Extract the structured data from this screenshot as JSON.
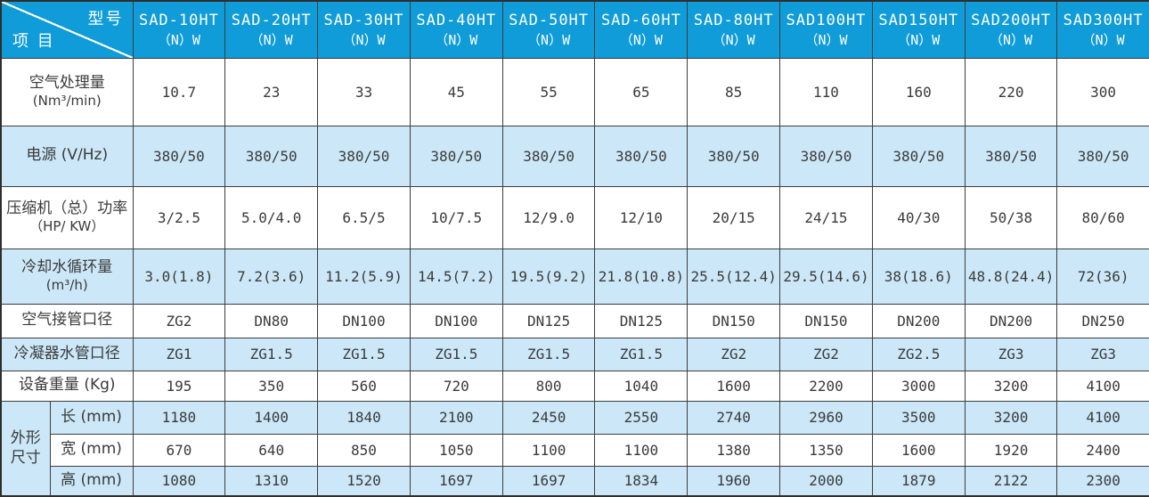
{
  "colors": {
    "header_bg": "#0f9cd8",
    "row_alt_bg": "#cce8f8",
    "border": "#3d3d3d",
    "text": "#3a3a3a",
    "header_text": "#ffffff"
  },
  "table": {
    "corner": {
      "model_label": "型号",
      "item_label": "项 目"
    },
    "models": [
      {
        "name": "SAD-10HT",
        "sub": "（N）W"
      },
      {
        "name": "SAD-20HT",
        "sub": "（N）W"
      },
      {
        "name": "SAD-30HT",
        "sub": "（N）W"
      },
      {
        "name": "SAD-40HT",
        "sub": "（N）W"
      },
      {
        "name": "SAD-50HT",
        "sub": "（N）W"
      },
      {
        "name": "SAD-60HT",
        "sub": "（N）W"
      },
      {
        "name": "SAD-80HT",
        "sub": "（N）W"
      },
      {
        "name": "SAD100HT",
        "sub": "（N）W"
      },
      {
        "name": "SAD150HT",
        "sub": "（N）W"
      },
      {
        "name": "SAD200HT",
        "sub": "（N）W"
      },
      {
        "name": "SAD300HT",
        "sub": "（N）W"
      }
    ],
    "rows": [
      {
        "id": "air-capacity",
        "label": "空气处理量",
        "unit": "(Nm³/min)",
        "bg": "white",
        "values": [
          "10.7",
          "23",
          "33",
          "45",
          "55",
          "65",
          "85",
          "110",
          "160",
          "220",
          "300"
        ]
      },
      {
        "id": "power-supply",
        "label": "电源 (V/Hz)",
        "unit": "",
        "bg": "blue",
        "values": [
          "380/50",
          "380/50",
          "380/50",
          "380/50",
          "380/50",
          "380/50",
          "380/50",
          "380/50",
          "380/50",
          "380/50",
          "380/50"
        ]
      },
      {
        "id": "compressor-power",
        "label": "压缩机（总）功率",
        "unit": "（HP/ KW）",
        "bg": "white",
        "values": [
          "3/2.5",
          "5.0/4.0",
          "6.5/5",
          "10/7.5",
          "12/9.0",
          "12/10",
          "20/15",
          "24/15",
          "40/30",
          "50/38",
          "80/60"
        ]
      },
      {
        "id": "cooling-water-flow",
        "label": "冷却水循环量",
        "unit": "(m³/h)",
        "bg": "blue",
        "values": [
          "3.0(1.8)",
          "7.2(3.6)",
          "11.2(5.9)",
          "14.5(7.2)",
          "19.5(9.2)",
          "21.8(10.8)",
          "25.5(12.4)",
          "29.5(14.6)",
          "38(18.6)",
          "48.8(24.4)",
          "72(36)"
        ]
      },
      {
        "id": "air-pipe-diameter",
        "label": "空气接管口径",
        "unit": "",
        "bg": "white",
        "values": [
          "ZG2",
          "DN80",
          "DN100",
          "DN100",
          "DN125",
          "DN125",
          "DN150",
          "DN150",
          "DN200",
          "DN200",
          "DN250"
        ]
      },
      {
        "id": "condenser-pipe-diameter",
        "label": "冷凝器水管口径",
        "unit": "",
        "bg": "blue",
        "values": [
          "ZG1",
          "ZG1.5",
          "ZG1.5",
          "ZG1.5",
          "ZG1.5",
          "ZG1.5",
          "ZG2",
          "ZG2",
          "ZG2.5",
          "ZG3",
          "ZG3"
        ]
      },
      {
        "id": "equipment-weight",
        "label": "设备重量 (Kg)",
        "unit": "",
        "bg": "white",
        "values": [
          "195",
          "350",
          "560",
          "720",
          "800",
          "1040",
          "1600",
          "2200",
          "3000",
          "3200",
          "4100"
        ]
      }
    ],
    "dimensions": {
      "group_label_line1": "外形",
      "group_label_line2": "尺寸",
      "rows": [
        {
          "id": "length",
          "label": "长 (mm)",
          "bg": "blue",
          "values": [
            "1180",
            "1400",
            "1840",
            "2100",
            "2450",
            "2550",
            "2740",
            "2960",
            "3500",
            "3200",
            "4100"
          ]
        },
        {
          "id": "width",
          "label": "宽 (mm)",
          "bg": "white",
          "values": [
            "670",
            "640",
            "850",
            "1050",
            "1100",
            "1100",
            "1380",
            "1350",
            "1600",
            "1920",
            "2400"
          ]
        },
        {
          "id": "height",
          "label": "高 (mm)",
          "bg": "blue",
          "values": [
            "1080",
            "1310",
            "1520",
            "1697",
            "1697",
            "1834",
            "1960",
            "2000",
            "1879",
            "2122",
            "2300"
          ]
        }
      ]
    }
  }
}
